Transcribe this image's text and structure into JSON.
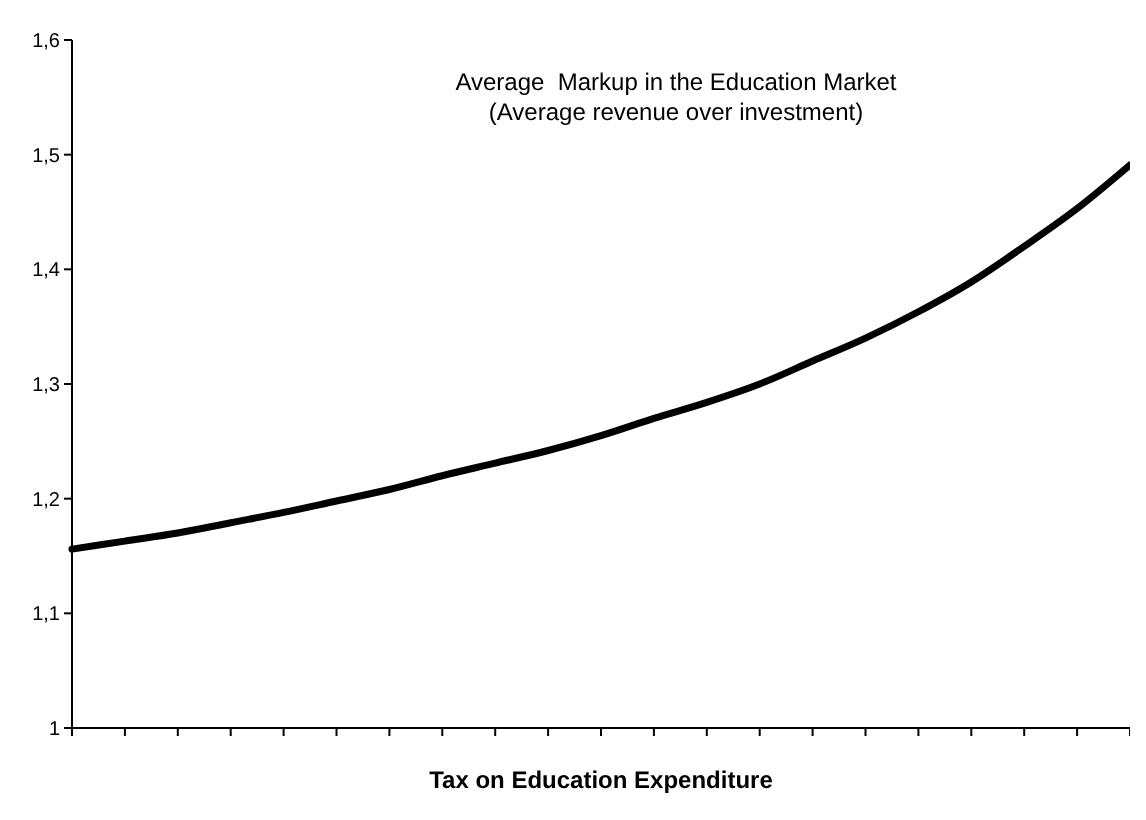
{
  "chart_data": {
    "type": "line",
    "title": "Average  Markup in the Education Market",
    "subtitle": "(Average revenue over investment)",
    "xlabel": "Tax on Education Expenditure",
    "categories": [
      null,
      null,
      null,
      null,
      null,
      null,
      null,
      null,
      null,
      null,
      null,
      null,
      null,
      null,
      null,
      null,
      null,
      null,
      null,
      null,
      null
    ],
    "series": [
      {
        "color": "#000000",
        "values": [
          1.156,
          1.163,
          1.17,
          1.179,
          1.188,
          1.198,
          1.208,
          1.22,
          1.231,
          1.242,
          1.255,
          1.27,
          1.284,
          1.3,
          1.32,
          1.34,
          1.363,
          1.389,
          1.42,
          1.453,
          1.491
        ]
      }
    ],
    "ylim": [
      1,
      1.6
    ],
    "yticks": [
      {
        "value": 1,
        "label": "1"
      },
      {
        "value": 1.1,
        "label": "1,1"
      },
      {
        "value": 1.2,
        "label": "1,2"
      },
      {
        "value": 1.3,
        "label": "1,3"
      },
      {
        "value": 1.4,
        "label": "1,4"
      },
      {
        "value": 1.5,
        "label": "1,5"
      },
      {
        "value": 1.6,
        "label": "1,6"
      }
    ],
    "grid": false,
    "legend": false,
    "marker": "none",
    "line_style": "solid"
  }
}
